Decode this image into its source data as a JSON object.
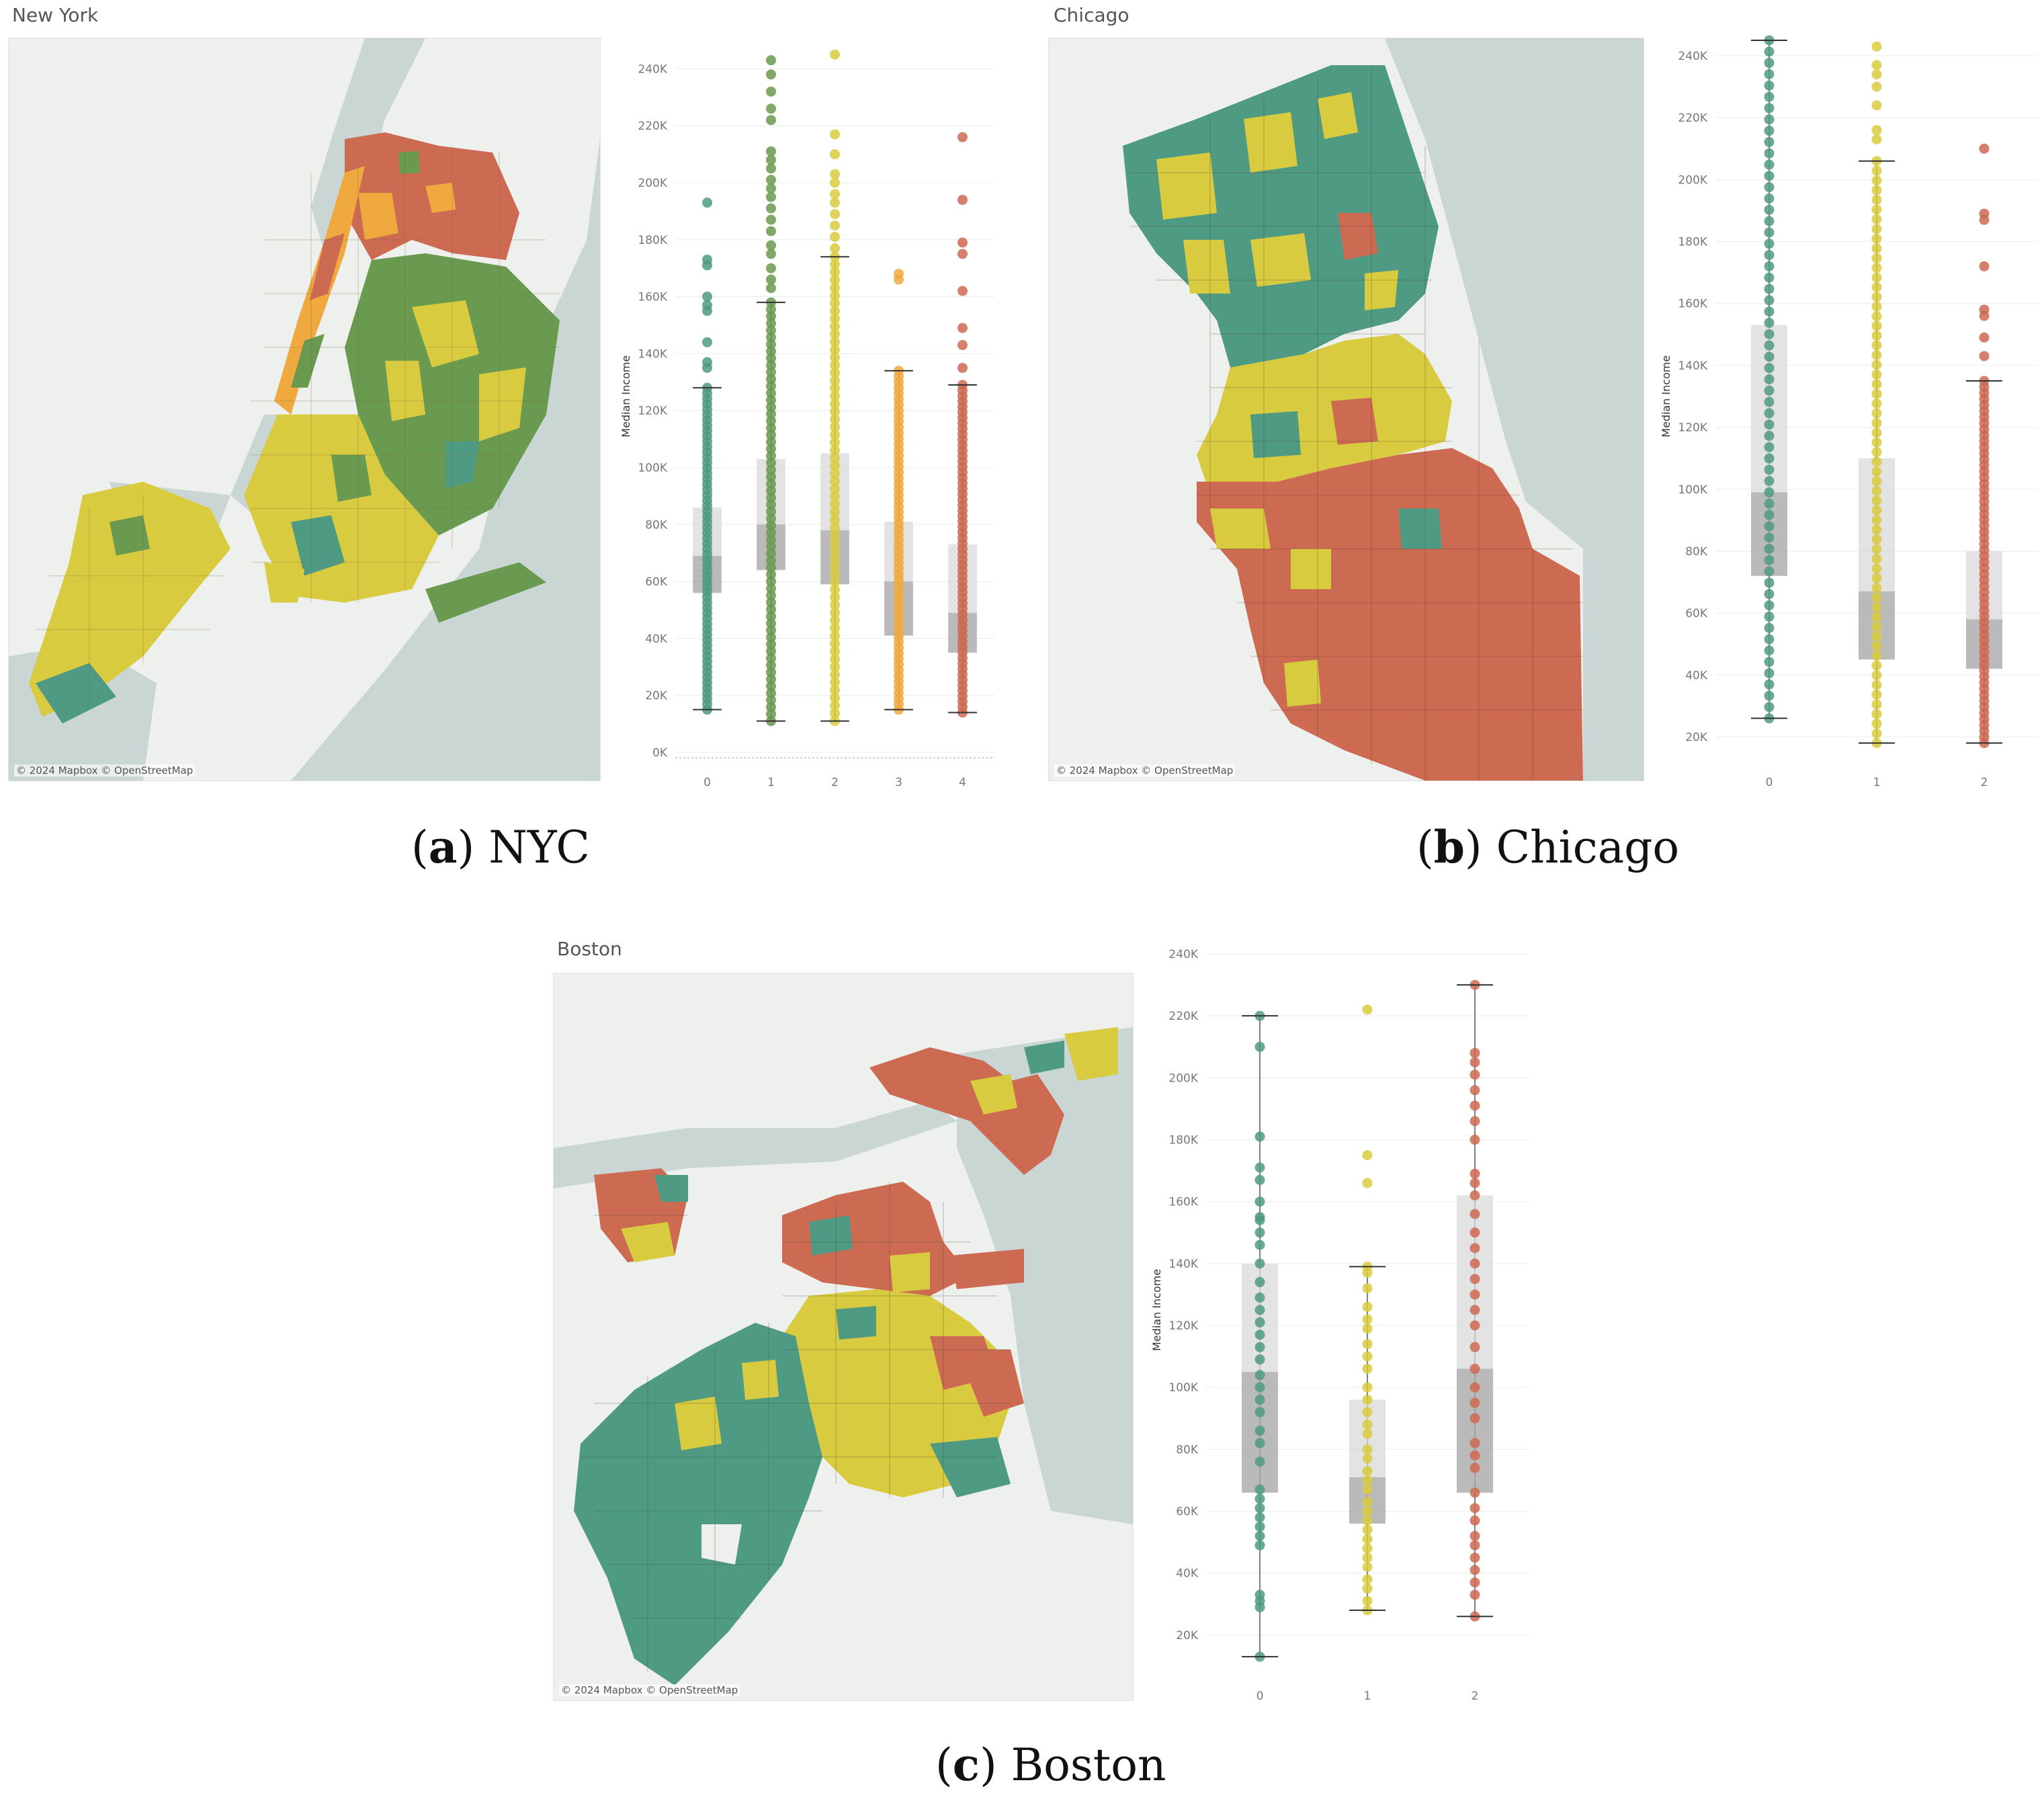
{
  "attribution": "© 2024 Mapbox © OpenStreetMap",
  "colors": {
    "cluster_0_green": "#4f9a82",
    "cluster_1_olive": "#6a9a4f",
    "cluster_yellow": "#d9cb3f",
    "cluster_orange": "#f0a93f",
    "cluster_red": "#cd6a52",
    "water": "#c9d6d3",
    "land": "#eef0ee"
  },
  "panels": [
    {
      "id": "nyc",
      "map_title": "New York",
      "caption_letter": "a",
      "caption_text": "NYC"
    },
    {
      "id": "chicago",
      "map_title": "Chicago",
      "caption_letter": "b",
      "caption_text": "Chicago"
    },
    {
      "id": "boston",
      "map_title": "Boston",
      "caption_letter": "c",
      "caption_text": "Boston"
    }
  ],
  "chart_data": [
    {
      "type": "box",
      "panel": "nyc",
      "ylabel": "Median Income",
      "ylim": [
        0,
        250000
      ],
      "yticks": [
        "0K",
        "20K",
        "40K",
        "60K",
        "80K",
        "100K",
        "120K",
        "140K",
        "160K",
        "180K",
        "200K",
        "220K",
        "240K"
      ],
      "categories": [
        "0",
        "1",
        "2",
        "3",
        "4"
      ],
      "series": [
        {
          "category": "0",
          "color": "#4f9a82",
          "whisker_low": 15000,
          "q1": 56000,
          "median": 69000,
          "q3": 86000,
          "whisker_high": 128000,
          "outliers": [
            193000,
            173000,
            171000,
            160000,
            157000,
            155000,
            144000,
            137000,
            135000
          ],
          "points_min": 15000,
          "points_max": 128000
        },
        {
          "category": "1",
          "color": "#6a9a4f",
          "whisker_low": 11000,
          "q1": 64000,
          "median": 80000,
          "q3": 103000,
          "whisker_high": 158000,
          "outliers": [
            243000,
            238000,
            232000,
            226000,
            222000,
            211000,
            208000,
            205000,
            201000,
            198000,
            195000,
            191000,
            187000,
            183000,
            178000,
            175000,
            170000,
            166000,
            163000
          ],
          "points_min": 11000,
          "points_max": 158000
        },
        {
          "category": "2",
          "color": "#d9cb3f",
          "whisker_low": 11000,
          "q1": 59000,
          "median": 78000,
          "q3": 105000,
          "whisker_high": 174000,
          "outliers": [
            245000,
            217000,
            210000,
            203000,
            200000,
            196000,
            193000,
            189000,
            185000,
            181000,
            177000
          ],
          "points_min": 11000,
          "points_max": 174000
        },
        {
          "category": "3",
          "color": "#f0a93f",
          "whisker_low": 15000,
          "q1": 41000,
          "median": 60000,
          "q3": 81000,
          "whisker_high": 134000,
          "outliers": [
            168000,
            166000
          ],
          "points_min": 15000,
          "points_max": 134000
        },
        {
          "category": "4",
          "color": "#cd6a52",
          "whisker_low": 14000,
          "q1": 35000,
          "median": 49000,
          "q3": 73000,
          "whisker_high": 129000,
          "outliers": [
            216000,
            194000,
            179000,
            175000,
            162000,
            149000,
            143000,
            135000
          ],
          "points_min": 14000,
          "points_max": 129000
        }
      ]
    },
    {
      "type": "box",
      "panel": "chicago",
      "ylabel": "Median Income",
      "ylim": [
        15000,
        245000
      ],
      "yticks": [
        "20K",
        "40K",
        "60K",
        "80K",
        "100K",
        "120K",
        "140K",
        "160K",
        "180K",
        "200K",
        "220K",
        "240K"
      ],
      "categories": [
        "0",
        "1",
        "2"
      ],
      "series": [
        {
          "category": "0",
          "color": "#4f9a82",
          "whisker_low": 26000,
          "q1": 72000,
          "median": 99000,
          "q3": 153000,
          "whisker_high": 245000,
          "outliers": [],
          "points_min": 26000,
          "points_max": 245000
        },
        {
          "category": "1",
          "color": "#d9cb3f",
          "whisker_low": 18000,
          "q1": 45000,
          "median": 67000,
          "q3": 110000,
          "whisker_high": 206000,
          "outliers": [
            243000,
            237000,
            234000,
            230000,
            224000,
            216000,
            213000
          ],
          "points_min": 18000,
          "points_max": 206000
        },
        {
          "category": "2",
          "color": "#cd6a52",
          "whisker_low": 18000,
          "q1": 42000,
          "median": 58000,
          "q3": 80000,
          "whisker_high": 135000,
          "outliers": [
            210000,
            189000,
            187000,
            172000,
            158000,
            156000,
            149000,
            143000
          ],
          "points_min": 18000,
          "points_max": 135000
        }
      ]
    },
    {
      "type": "box",
      "panel": "boston",
      "ylabel": "Median Income",
      "ylim": [
        10000,
        240000
      ],
      "yticks": [
        "20K",
        "40K",
        "60K",
        "80K",
        "100K",
        "120K",
        "140K",
        "160K",
        "180K",
        "200K",
        "220K",
        "240K"
      ],
      "categories": [
        "0",
        "1",
        "2"
      ],
      "series": [
        {
          "category": "0",
          "color": "#4f9a82",
          "whisker_low": 13000,
          "q1": 66000,
          "median": 105000,
          "q3": 140000,
          "whisker_high": 220000,
          "outliers": [],
          "points": [
            220000,
            210000,
            181000,
            171000,
            167000,
            160000,
            155000,
            154000,
            150000,
            146000,
            140000,
            134000,
            129000,
            125000,
            121000,
            117000,
            113000,
            109000,
            104000,
            100000,
            96000,
            92000,
            86000,
            82000,
            76000,
            67000,
            64000,
            61000,
            58000,
            55000,
            52000,
            49000,
            33000,
            31000,
            29000,
            13000
          ]
        },
        {
          "category": "1",
          "color": "#d9cb3f",
          "whisker_low": 28000,
          "q1": 56000,
          "median": 71000,
          "q3": 96000,
          "whisker_high": 139000,
          "outliers": [
            222000,
            175000,
            166000
          ],
          "points": [
            139000,
            137000,
            132000,
            126000,
            122000,
            119000,
            114000,
            110000,
            106000,
            100000,
            96000,
            92000,
            88000,
            85000,
            80000,
            77000,
            73000,
            70000,
            67000,
            63000,
            60000,
            57000,
            54000,
            51000,
            48000,
            45000,
            42000,
            38000,
            35000,
            31000,
            28000
          ]
        },
        {
          "category": "2",
          "color": "#cd6a52",
          "whisker_low": 26000,
          "q1": 66000,
          "median": 106000,
          "q3": 162000,
          "whisker_high": 230000,
          "outliers": [],
          "points": [
            230000,
            208000,
            205000,
            201000,
            196000,
            191000,
            186000,
            180000,
            169000,
            166000,
            162000,
            156000,
            150000,
            145000,
            140000,
            135000,
            130000,
            125000,
            120000,
            113000,
            106000,
            100000,
            95000,
            90000,
            82000,
            78000,
            74000,
            66000,
            61000,
            57000,
            52000,
            49000,
            45000,
            41000,
            37000,
            33000,
            26000
          ]
        }
      ]
    }
  ]
}
